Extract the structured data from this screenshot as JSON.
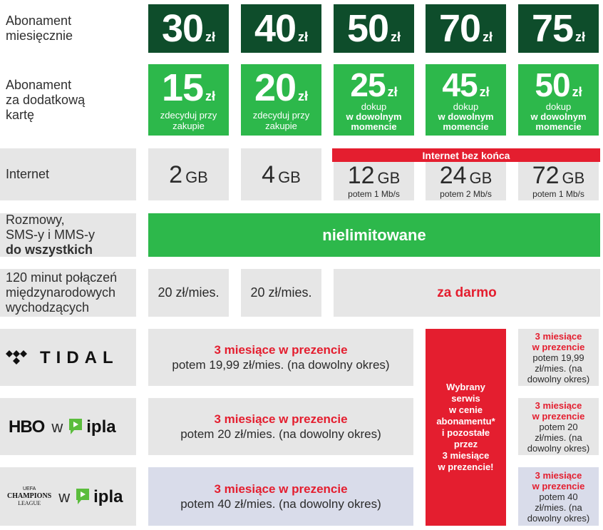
{
  "rows": {
    "monthly_label": "Abonament miesięcznie",
    "extra_label_lines": [
      "Abonament",
      "za dodatkową",
      "kartę"
    ],
    "internet_label": "Internet",
    "calls_label_lines": [
      "Rozmowy,",
      "SMS-y i MMS-y"
    ],
    "calls_label_bold": "do wszystkich",
    "intl_label_lines": [
      "120 minut połączeń",
      "międzynarodowych",
      "wychodzących"
    ]
  },
  "currency": "zł",
  "monthly_prices": [
    "30",
    "40",
    "50",
    "70",
    "75"
  ],
  "extra_cards": [
    {
      "price": "15",
      "note_lines": [
        "zdecyduj przy",
        "zakupie"
      ]
    },
    {
      "price": "20",
      "note_lines": [
        "zdecyduj przy",
        "zakupie"
      ]
    },
    {
      "price": "25",
      "note_lines": [
        "dokup",
        "w dowolnym",
        "momencie"
      ]
    },
    {
      "price": "45",
      "note_lines": [
        "dokup",
        "w dowolnym",
        "momencie"
      ]
    },
    {
      "price": "50",
      "note_lines": [
        "dokup",
        "w dowolnym",
        "momencie"
      ]
    }
  ],
  "internet": {
    "banner": "Internet bez końca",
    "unit": "GB",
    "plans": [
      {
        "amount": "2",
        "note": ""
      },
      {
        "amount": "4",
        "note": ""
      },
      {
        "amount": "12",
        "note": "potem 1 Mb/s"
      },
      {
        "amount": "24",
        "note": "potem 2 Mb/s"
      },
      {
        "amount": "72",
        "note": "potem 1 Mb/s"
      }
    ]
  },
  "calls_value": "nielimitowane",
  "intl": {
    "paid_1": "20 zł/mies.",
    "paid_2": "20 zł/mies.",
    "free": "za darmo"
  },
  "services": {
    "promo": "3 miesiące w prezencie",
    "tidal": {
      "logo": "TIDAL",
      "after": "potem 19,99 zł/mies. (na dowolny okres)",
      "right_after_lines": [
        "potem 19,99",
        "zł/mies. (na",
        "dowolny okres)"
      ]
    },
    "hbo": {
      "logo": "HBO",
      "w": "w",
      "ipla": "ipla",
      "after": "potem 20 zł/mies. (na dowolny okres)",
      "right_after_lines": [
        "potem 20",
        "zł/mies. (na",
        "dowolny okres)"
      ]
    },
    "cl": {
      "logo_lines": [
        "UEFA",
        "CHAMPIONS",
        "LEAGUE"
      ],
      "w": "w",
      "ipla": "ipla",
      "after": "potem 40 zł/mies. (na dowolny okres)",
      "right_after_lines": [
        "potem 40",
        "zł/mies. (na",
        "dowolny okres)"
      ]
    },
    "small_promo_lines": [
      "3 miesiące",
      "w prezencie"
    ],
    "choose_lines": [
      "Wybrany",
      "serwis",
      "w cenie",
      "abonamentu*",
      "i pozostałe",
      "przez",
      "3 miesiące",
      "w prezencie!"
    ]
  },
  "colors": {
    "dark_green": "#0e4d2b",
    "green": "#2db84b",
    "red": "#e41e2f",
    "grey": "#e6e6e6",
    "lavender": "#d9dcea"
  }
}
